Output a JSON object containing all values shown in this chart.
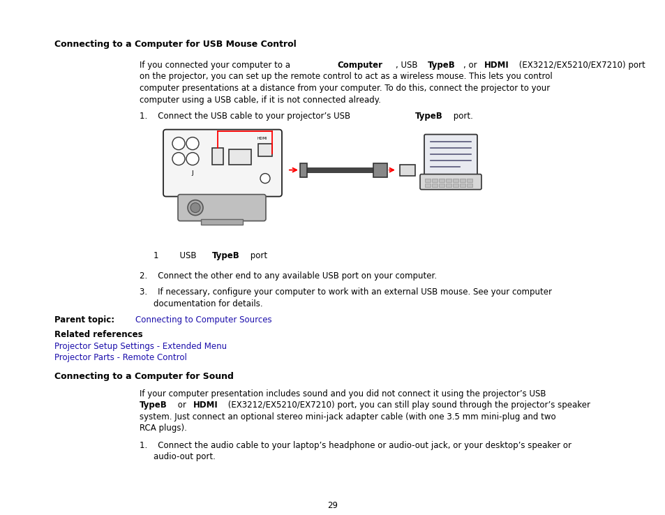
{
  "page_number": "29",
  "bg_color": "#ffffff",
  "text_color": "#000000",
  "link_color": "#1a0dab",
  "heading1": "Connecting to a Computer for USB Mouse Control",
  "heading2": "Connecting to a Computer for Sound",
  "parent_topic_link": "Connecting to Computer Sources",
  "related_refs": "Related references",
  "ref_link1": "Projector Setup Settings - Extended Menu",
  "ref_link2": "Projector Parts - Remote Control"
}
